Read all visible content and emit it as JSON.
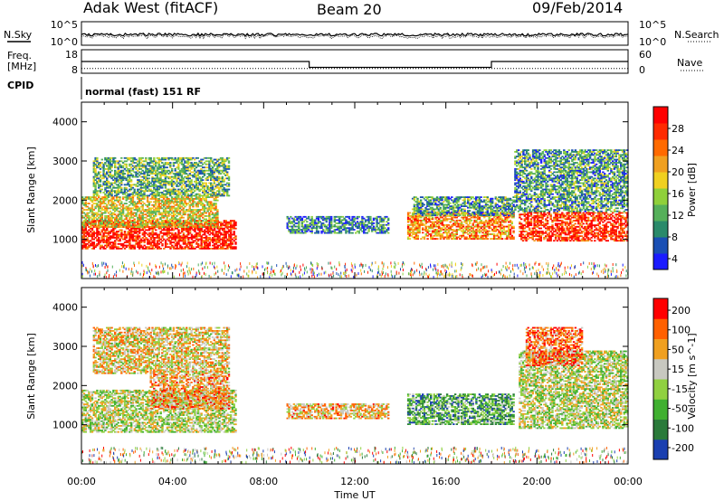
{
  "header": {
    "station": "Adak West (fitACF)",
    "beam": "Beam 20",
    "date": "09/Feb/2014"
  },
  "top_panel": {
    "left_label": "N.Sky",
    "right_label": "N.Search",
    "left_ticks": [
      "10^5",
      "10^0"
    ],
    "right_ticks": [
      "10^5",
      "10^0"
    ]
  },
  "freq_panel": {
    "left_label_top": "Freq.",
    "left_label_bottom": "[MHz]",
    "right_label": "Nave",
    "left_ticks": [
      "18",
      "8"
    ],
    "right_ticks": [
      "60",
      "0"
    ]
  },
  "cpid": {
    "label": "CPID",
    "text": "normal (fast) 151 RF"
  },
  "chart_data": [
    {
      "type": "heatmap",
      "title": "",
      "xlabel": "Time UT",
      "ylabel": "Slant Range [km]",
      "xlim_hours": [
        0,
        24
      ],
      "ylim_km": [
        0,
        4500
      ],
      "x_ticks": [
        "00:00",
        "04:00",
        "08:00",
        "12:00",
        "16:00",
        "20:00",
        "00:00"
      ],
      "y_ticks": [
        "1000",
        "2000",
        "3000",
        "4000"
      ],
      "colorbar_label": "Power [dB]",
      "colorbar_ticks": [
        "4",
        "8",
        "12",
        "16",
        "20",
        "24",
        "28"
      ],
      "colorbar_colors": [
        "#1b1bff",
        "#1a4fb4",
        "#2a8a6a",
        "#55b05a",
        "#8fd03a",
        "#f0d020",
        "#f0a020",
        "#ff6a00",
        "#ff2a00",
        "#ff0000"
      ],
      "regions": [
        {
          "t0": 0.0,
          "t1": 6.8,
          "r0": 750,
          "r1": 1500,
          "level": 0.92
        },
        {
          "t0": 0.0,
          "t1": 6.0,
          "r0": 1300,
          "r1": 2100,
          "level": 0.55
        },
        {
          "t0": 0.5,
          "t1": 6.5,
          "r0": 2100,
          "r1": 3100,
          "level": 0.35
        },
        {
          "t0": 9.0,
          "t1": 13.5,
          "r0": 1150,
          "r1": 1600,
          "level": 0.25
        },
        {
          "t0": 14.3,
          "t1": 19.0,
          "r0": 1000,
          "r1": 1700,
          "level": 0.7
        },
        {
          "t0": 14.5,
          "t1": 19.0,
          "r0": 1600,
          "r1": 2100,
          "level": 0.3
        },
        {
          "t0": 19.2,
          "t1": 24.0,
          "r0": 950,
          "r1": 1700,
          "level": 0.88
        },
        {
          "t0": 19.0,
          "t1": 24.0,
          "r0": 1700,
          "r1": 3300,
          "level": 0.3
        }
      ]
    },
    {
      "type": "heatmap",
      "title": "",
      "xlabel": "Time UT",
      "ylabel": "Slant Range [km]",
      "xlim_hours": [
        0,
        24
      ],
      "ylim_km": [
        0,
        4500
      ],
      "x_ticks": [
        "00:00",
        "04:00",
        "08:00",
        "12:00",
        "16:00",
        "20:00",
        "00:00"
      ],
      "y_ticks": [
        "1000",
        "2000",
        "3000",
        "4000"
      ],
      "colorbar_label": "Velocity [m s^-1]",
      "colorbar_ticks": [
        "200",
        "100",
        "50",
        "15",
        "-15",
        "-50",
        "-100",
        "-200"
      ],
      "colorbar_colors": [
        "#1a3fb0",
        "#2a7a3a",
        "#40b030",
        "#90d040",
        "#c8c8c0",
        "#f0a020",
        "#ff6000",
        "#ff0000"
      ],
      "regions": [
        {
          "t0": 0.0,
          "t1": 6.8,
          "r0": 800,
          "r1": 1900,
          "level": 0.5
        },
        {
          "t0": 3.0,
          "t1": 6.5,
          "r0": 1400,
          "r1": 2300,
          "level": 0.7
        },
        {
          "t0": 0.5,
          "t1": 6.5,
          "r0": 2300,
          "r1": 3500,
          "level": 0.6
        },
        {
          "t0": 9.0,
          "t1": 13.5,
          "r0": 1150,
          "r1": 1550,
          "level": 0.65
        },
        {
          "t0": 14.3,
          "t1": 19.0,
          "r0": 1000,
          "r1": 1800,
          "level": 0.3
        },
        {
          "t0": 19.2,
          "t1": 24.0,
          "r0": 900,
          "r1": 2900,
          "level": 0.5
        },
        {
          "t0": 19.5,
          "t1": 22.0,
          "r0": 2500,
          "r1": 3500,
          "level": 0.8
        }
      ]
    }
  ],
  "freq_series": {
    "segments": [
      {
        "t0": 0.0,
        "t1": 10.0,
        "value": 13
      },
      {
        "t0": 10.0,
        "t1": 18.0,
        "value": 10.5
      },
      {
        "t0": 18.0,
        "t1": 24.0,
        "value": 13
      }
    ],
    "nave_value": 12
  },
  "noise_series": {
    "level": 0.45
  }
}
